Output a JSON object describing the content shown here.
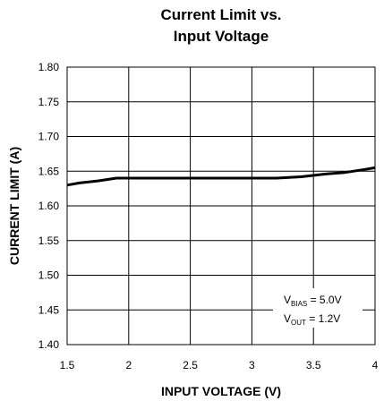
{
  "chart_data": {
    "type": "line",
    "title": [
      "Current Limit vs.",
      "Input Voltage"
    ],
    "xlabel": "INPUT VOLTAGE (V)",
    "ylabel": "CURRENT LIMIT (A)",
    "xlim": [
      1.5,
      4
    ],
    "ylim": [
      1.4,
      1.8
    ],
    "grid": true,
    "x_ticks": [
      "1.5",
      "2",
      "2.5",
      "3",
      "3.5",
      "4"
    ],
    "y_ticks": [
      "1.80",
      "1.75",
      "1.70",
      "1.65",
      "1.60",
      "1.55",
      "1.50",
      "1.45",
      "1.40"
    ],
    "series": [
      {
        "x": [
          1.5,
          1.6,
          1.75,
          1.9,
          2.0,
          2.5,
          3.0,
          3.2,
          3.4,
          3.6,
          3.75,
          3.9,
          4.0
        ],
        "y": [
          1.63,
          1.633,
          1.636,
          1.64,
          1.64,
          1.64,
          1.64,
          1.64,
          1.642,
          1.646,
          1.648,
          1.652,
          1.655
        ],
        "color": "#000000"
      }
    ],
    "annotations": [
      {
        "main": "V",
        "sub": "BIAS",
        "rest": " = 5.0V"
      },
      {
        "main": "V",
        "sub": "OUT",
        "rest": " = 1.2V"
      }
    ]
  }
}
